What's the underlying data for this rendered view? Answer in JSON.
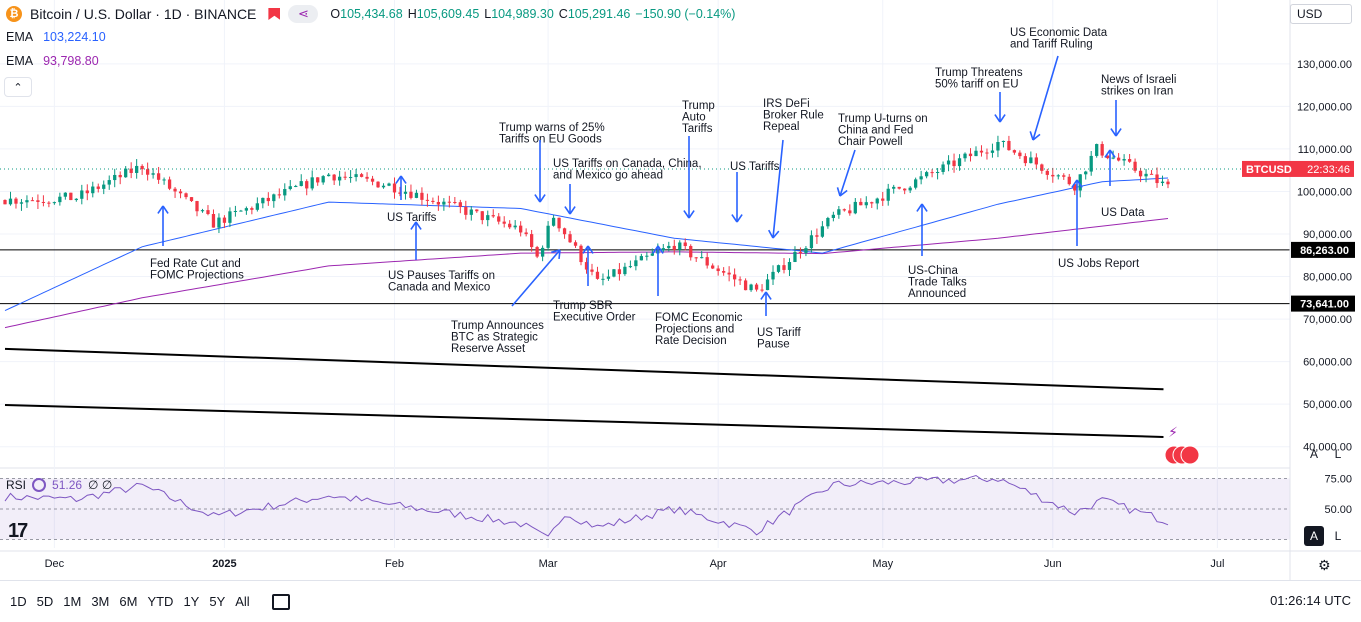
{
  "header": {
    "symbol_title": "Bitcoin / U.S. Dollar · 1D · BINANCE",
    "coin_icon": "bitcoin-icon",
    "ohlc": {
      "o_label": "O",
      "o": "105,434.68",
      "h_label": "H",
      "h": "105,609.45",
      "l_label": "L",
      "l": "104,989.30",
      "c_label": "C",
      "c": "105,291.46",
      "chg": "−150.90 (−0.14%)"
    }
  },
  "indicators": {
    "ema1": {
      "label": "EMA",
      "value": "103,224.10"
    },
    "ema2": {
      "label": "EMA",
      "value": "93,798.80"
    },
    "rsi": {
      "label": "RSI",
      "value": "51.26",
      "extra": "∅ ∅"
    }
  },
  "currency": "USD",
  "buttons": {
    "collapse": "⌃",
    "auto": "A",
    "log": "L",
    "auto2": "A",
    "log2": "L"
  },
  "time_ranges": [
    "1D",
    "5D",
    "1M",
    "3M",
    "6M",
    "YTD",
    "1Y",
    "5Y",
    "All"
  ],
  "clock": "01:26:14 UTC",
  "colors": {
    "up": "#089981",
    "down": "#f23645",
    "ema_short": "#2962ff",
    "ema_long": "#9c27b0",
    "rsi": "#7e57c2",
    "annotation": "#2962ff"
  },
  "chart_data": {
    "type": "candlestick",
    "symbol": "BTCUSD",
    "countdown": "22:33:46",
    "last_price": "105,291.46",
    "ylim": [
      35000,
      145000
    ],
    "y_ticks": [
      "130,000.00",
      "120,000.00",
      "110,000.00",
      "100,000.00",
      "90,000.00",
      "80,000.00",
      "70,000.00",
      "60,000.00",
      "50,000.00",
      "40,000.00"
    ],
    "x_ticks": [
      "Dec",
      "2025",
      "Feb",
      "Mar",
      "Apr",
      "May",
      "Jun",
      "Jul"
    ],
    "date_range": [
      "2024-11-22",
      "2025-06-22"
    ],
    "close_waypoints": [
      [
        "2024-11-22",
        98000
      ],
      [
        "2024-12-05",
        98500
      ],
      [
        "2024-12-17",
        106000
      ],
      [
        "2024-12-30",
        92500
      ],
      [
        "2025-01-20",
        104000
      ],
      [
        "2025-01-31",
        101500
      ],
      [
        "2025-02-24",
        91000
      ],
      [
        "2025-02-27",
        84500
      ],
      [
        "2025-03-02",
        94200
      ],
      [
        "2025-03-10",
        78500
      ],
      [
        "2025-03-24",
        87500
      ],
      [
        "2025-04-08",
        76500
      ],
      [
        "2025-04-22",
        94000
      ],
      [
        "2025-05-08",
        103000
      ],
      [
        "2025-05-22",
        111500
      ],
      [
        "2025-06-05",
        101500
      ],
      [
        "2025-06-09",
        110000
      ],
      [
        "2025-06-22",
        101000
      ],
      [
        "2025-06-23",
        105291
      ]
    ],
    "ema_short_waypoints": [
      [
        "2024-11-22",
        72000
      ],
      [
        "2024-12-17",
        87000
      ],
      [
        "2025-01-20",
        97500
      ],
      [
        "2025-02-24",
        96000
      ],
      [
        "2025-03-24",
        89000
      ],
      [
        "2025-04-20",
        85500
      ],
      [
        "2025-05-22",
        97000
      ],
      [
        "2025-06-10",
        102300
      ],
      [
        "2025-06-23",
        103224
      ]
    ],
    "ema_long_waypoints": [
      [
        "2024-11-22",
        68000
      ],
      [
        "2024-12-17",
        75000
      ],
      [
        "2025-01-20",
        82500
      ],
      [
        "2025-02-24",
        85500
      ],
      [
        "2025-03-24",
        85800
      ],
      [
        "2025-04-20",
        85400
      ],
      [
        "2025-05-22",
        89000
      ],
      [
        "2025-06-23",
        93799
      ]
    ],
    "horizontal_lines": [
      {
        "price": 86263,
        "label": "86,263.00"
      },
      {
        "price": 73641,
        "label": "73,641.00"
      }
    ],
    "trend_lines": [
      {
        "from": [
          "2024-11-22",
          63000
        ],
        "to": [
          "2025-06-23",
          53500
        ]
      },
      {
        "from": [
          "2024-11-22",
          49800
        ],
        "to": [
          "2025-06-23",
          42300
        ]
      }
    ],
    "rsi_levels": [
      "75.00",
      "50.00"
    ],
    "rsi_waypoints": [
      [
        "2024-11-22",
        60
      ],
      [
        "2024-12-05",
        58
      ],
      [
        "2024-12-17",
        69
      ],
      [
        "2024-12-30",
        44
      ],
      [
        "2025-01-20",
        61
      ],
      [
        "2025-02-24",
        38
      ],
      [
        "2025-03-01",
        25
      ],
      [
        "2025-03-04",
        47
      ],
      [
        "2025-03-10",
        35
      ],
      [
        "2025-03-24",
        50
      ],
      [
        "2025-04-08",
        32
      ],
      [
        "2025-04-22",
        70
      ],
      [
        "2025-05-22",
        75
      ],
      [
        "2025-06-05",
        47
      ],
      [
        "2025-06-10",
        57
      ],
      [
        "2025-06-22",
        40
      ],
      [
        "2025-06-23",
        51.26
      ]
    ],
    "annotations": [
      {
        "lines": [
          "Fed Rate Cut and",
          "FOMC Projections"
        ],
        "date": "2024-12-18"
      },
      {
        "lines": [
          "US Tariffs"
        ],
        "date": "2025-02-01"
      },
      {
        "lines": [
          "US Pauses Tariffs on",
          "Canada and Mexico"
        ],
        "date": "2025-02-03"
      },
      {
        "lines": [
          "Trump warns of 25%",
          "Tariffs on EU Goods"
        ],
        "date": "2025-02-26"
      },
      {
        "lines": [
          "US Tariffs on Canada, China,",
          "and Mexico go ahead"
        ],
        "date": "2025-03-04"
      },
      {
        "lines": [
          "Trump Announces",
          "BTC as Strategic",
          "Reserve Asset"
        ],
        "date": "2025-03-06"
      },
      {
        "lines": [
          "Trump SBR",
          "Executive Order"
        ],
        "date": "2025-03-07"
      },
      {
        "lines": [
          "FOMC Economic",
          "Projections and",
          "Rate Decision"
        ],
        "date": "2025-03-19"
      },
      {
        "lines": [
          "Trump",
          "Auto",
          "Tariffs"
        ],
        "date": "2025-03-26"
      },
      {
        "lines": [
          "US Tariffs"
        ],
        "date": "2025-04-02"
      },
      {
        "lines": [
          "US Tariff",
          "Pause"
        ],
        "date": "2025-04-09"
      },
      {
        "lines": [
          "IRS DeFi",
          "Broker Rule",
          "Repeal"
        ],
        "date": "2025-04-10"
      },
      {
        "lines": [
          "Trump U-turns on",
          "China and Fed",
          "Chair Powell"
        ],
        "date": "2025-04-22"
      },
      {
        "lines": [
          "US-China",
          "Trade Talks",
          "Announced"
        ],
        "date": "2025-05-08"
      },
      {
        "lines": [
          "Trump Threatens",
          "50% tariff on EU"
        ],
        "date": "2025-05-23"
      },
      {
        "lines": [
          "US Economic Data",
          "and Tariff Ruling"
        ],
        "date": "2025-05-28"
      },
      {
        "lines": [
          "US Jobs Report"
        ],
        "date": "2025-06-06"
      },
      {
        "lines": [
          "US Data"
        ],
        "date": "2025-06-11"
      },
      {
        "lines": [
          "News of Israeli",
          "strikes on Iran"
        ],
        "date": "2025-06-13"
      }
    ]
  }
}
